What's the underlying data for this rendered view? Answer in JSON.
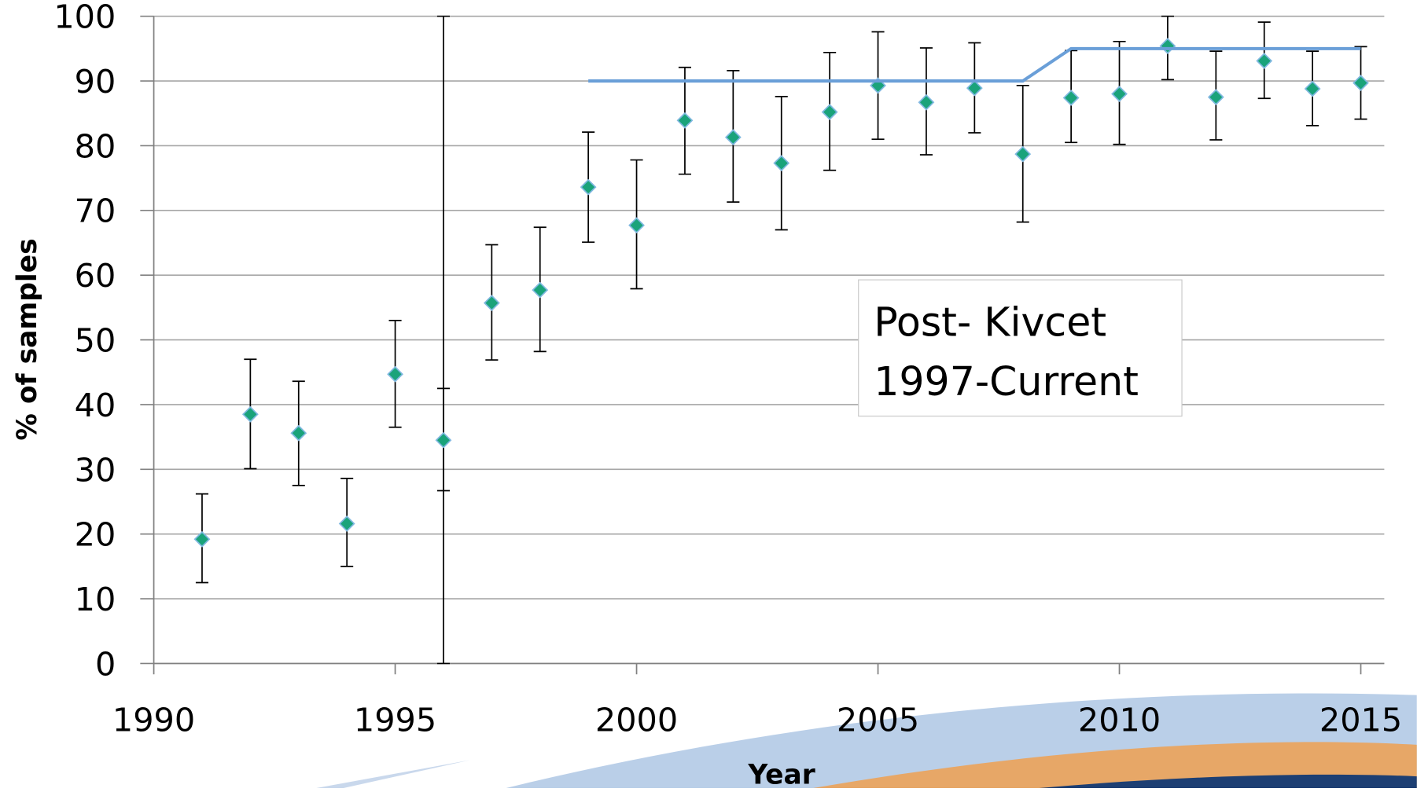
{
  "chart_data": {
    "type": "scatter",
    "xlabel": "Year",
    "ylabel": "% of samples",
    "xlim": [
      1990,
      2015
    ],
    "xticks": [
      1990,
      1995,
      2000,
      2005,
      2010,
      2015
    ],
    "ylim": [
      0,
      100
    ],
    "yticks": [
      0,
      10,
      20,
      30,
      40,
      50,
      60,
      70,
      80,
      90,
      100
    ],
    "grid": true,
    "annotation": [
      "Post- Kivcet",
      "1997-Current"
    ],
    "series": [
      {
        "type": "scatter",
        "color": "#1aa37a",
        "x": [
          1991,
          1992,
          1993,
          1994,
          1995,
          1996,
          1997,
          1998,
          1999,
          2000,
          2001,
          2002,
          2003,
          2004,
          2005,
          2006,
          2007,
          2008,
          2009,
          2010,
          2011,
          2012,
          2013,
          2014,
          2015
        ],
        "values": [
          19.2,
          38.5,
          35.6,
          21.6,
          44.7,
          34.5,
          55.7,
          57.7,
          73.6,
          67.7,
          83.9,
          81.3,
          77.3,
          85.2,
          89.3,
          86.7,
          88.9,
          78.7,
          87.4,
          88,
          95.4,
          87.5,
          93.1,
          88.8,
          89.7
        ],
        "lower": [
          12.5,
          30.1,
          27.5,
          15,
          36.5,
          26.7,
          46.9,
          48.2,
          65.1,
          57.9,
          75.6,
          71.3,
          67,
          76.2,
          81,
          78.6,
          82,
          68.2,
          80.5,
          80.2,
          90.2,
          80.9,
          87.3,
          83.1,
          84.1
        ],
        "upper": [
          26.2,
          47,
          43.6,
          28.6,
          53,
          42.5,
          64.7,
          67.4,
          82.1,
          77.8,
          92.1,
          91.6,
          87.6,
          94.4,
          97.6,
          95.1,
          95.9,
          89.3,
          94.7,
          96.1,
          100,
          94.6,
          99.1,
          94.6,
          95.3
        ]
      },
      {
        "type": "line",
        "color": "#6a9fd8",
        "x": [
          1999,
          2008,
          2009,
          2015
        ],
        "values": [
          90,
          90,
          95,
          95
        ]
      }
    ],
    "wide_bar": {
      "x": 1996,
      "lower": 0,
      "upper": 100
    }
  }
}
